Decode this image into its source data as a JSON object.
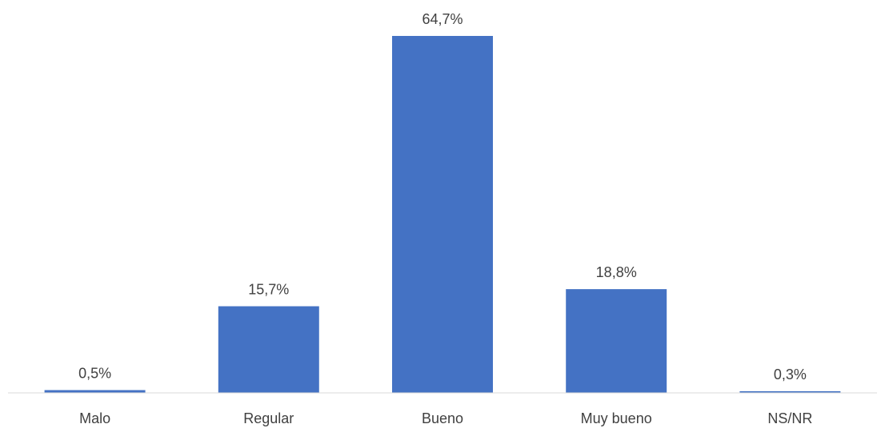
{
  "chart_data": {
    "type": "bar",
    "title": "",
    "xlabel": "",
    "ylabel": "",
    "categories": [
      "Malo",
      "Regular",
      "Bueno",
      "Muy bueno",
      "NS/NR"
    ],
    "values": [
      0.5,
      15.7,
      64.7,
      18.8,
      0.3
    ],
    "data_labels": [
      "0,5%",
      "15,7%",
      "64,7%",
      "18,8%",
      "0,3%"
    ],
    "ylim": [
      0,
      64.7
    ],
    "grid": false,
    "legend": "none",
    "colors": {
      "bar": "#4472C4",
      "axis": "#D9D9D9",
      "text": "#404040"
    }
  }
}
